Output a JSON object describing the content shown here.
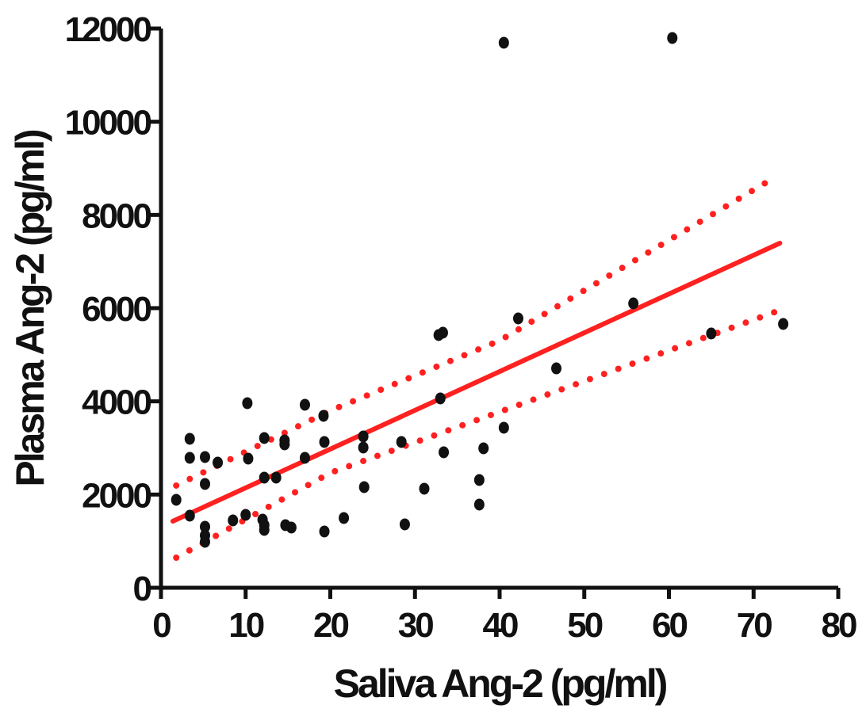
{
  "chart_data": {
    "type": "scatter",
    "x_label": "Saliva Ang-2 (pg/ml)",
    "y_label": "Plasma Ang-2  (pg/ml)",
    "xlim": [
      0,
      80
    ],
    "ylim": [
      0,
      12000
    ],
    "xticks": [
      0,
      10,
      20,
      30,
      40,
      50,
      60,
      70,
      80
    ],
    "yticks": [
      0,
      2000,
      4000,
      6000,
      8000,
      10000,
      12000
    ],
    "points": {
      "color": "#111111",
      "x": [
        1.8,
        3.4,
        3.4,
        3.4,
        5.2,
        5.2,
        5.2,
        5.2,
        5.2,
        6.7,
        8.5,
        10.0,
        10.2,
        10.3,
        12.0,
        12.2,
        12.2,
        12.2,
        12.2,
        13.6,
        14.6,
        14.6,
        14.7,
        15.4,
        17.0,
        17.0,
        19.2,
        19.3,
        19.3,
        21.6,
        23.9,
        23.9,
        24.0,
        28.4,
        28.8,
        31.1,
        32.8,
        33.0,
        33.3,
        33.4,
        37.6,
        37.6,
        38.1,
        40.5,
        40.5,
        42.2,
        46.7,
        55.8,
        60.4,
        65.0,
        73.5
      ],
      "y": [
        1887,
        3196,
        2788,
        1547,
        2805,
        2227,
        1309,
        1122,
        986,
        2686,
        1445,
        1564,
        3961,
        2771,
        1462,
        3213,
        2363,
        1343,
        1241,
        2363,
        3162,
        3077,
        1343,
        1292,
        2788,
        3927,
        3689,
        3128,
        1207,
        1496,
        3247,
        3009,
        2159,
        3128,
        1360,
        2125,
        5422,
        4063,
        5473,
        2907,
        2312,
        1785,
        2992,
        3434,
        11695,
        5779,
        4708,
        6102,
        11797,
        5456,
        5660
      ]
    },
    "fit": {
      "color": "#ff2020",
      "x": [
        1.4,
        73.1
      ],
      "y": [
        1428,
        7394
      ]
    },
    "upper_band": {
      "color": "#ff2020",
      "x": [
        1.8,
        20,
        40,
        72.5
      ],
      "y": [
        2193,
        3800,
        5303,
        8805
      ]
    },
    "lower_band": {
      "color": "#ff2020",
      "x": [
        1.8,
        20,
        40,
        72.5
      ],
      "y": [
        646,
        2465,
        3774,
        5915
      ]
    }
  }
}
